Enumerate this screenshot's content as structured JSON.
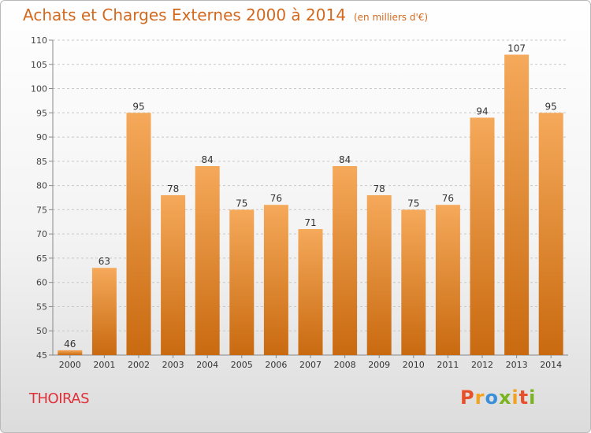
{
  "page": {
    "title": "Achats et Charges Externes 2000 à 2014",
    "subtitle": "(en milliers d'€)",
    "commune": "THOIRAS",
    "logo": {
      "letters": [
        "P",
        "r",
        "o",
        "x",
        "i",
        "t",
        "i"
      ],
      "colors": [
        "#e8502a",
        "#f4a21d",
        "#3a8fd8",
        "#7ab41f",
        "#f4a21d",
        "#e8502a",
        "#7ab41f"
      ]
    }
  },
  "chart_data": {
    "type": "bar",
    "title": "Achats et Charges Externes 2000 à 2014",
    "subtitle": "(en milliers d'€)",
    "categories": [
      "2000",
      "2001",
      "2002",
      "2003",
      "2004",
      "2005",
      "2006",
      "2007",
      "2008",
      "2009",
      "2010",
      "2011",
      "2012",
      "2013",
      "2014"
    ],
    "values": [
      46,
      63,
      95,
      78,
      84,
      75,
      76,
      71,
      84,
      78,
      75,
      76,
      94,
      107,
      95
    ],
    "ylim": [
      45,
      110
    ],
    "yticks": [
      45,
      50,
      55,
      60,
      65,
      70,
      75,
      80,
      85,
      90,
      95,
      100,
      105,
      110
    ],
    "grid": true,
    "bar_color_top": "#f5a95a",
    "bar_color_bottom": "#c96a10"
  }
}
